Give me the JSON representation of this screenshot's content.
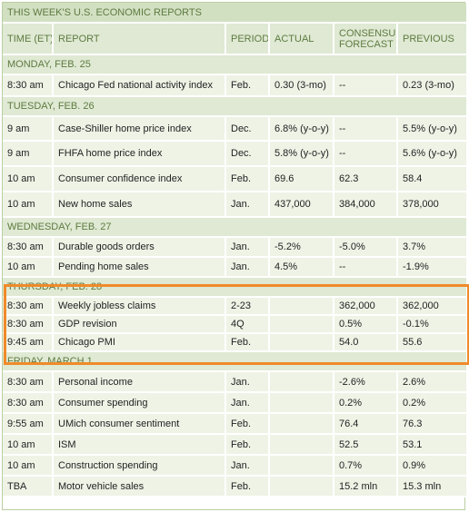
{
  "title": "THIS WEEK'S U.S. ECONOMIC REPORTS",
  "headers": {
    "time": "TIME (ET)",
    "report": "REPORT",
    "period": "PERIOD",
    "actual": "ACTUAL",
    "consensus_1": "CONSENSUS",
    "consensus_2": "FORECAST",
    "previous": "PREVIOUS"
  },
  "days": [
    {
      "label": "MONDAY, FEB. 25",
      "rows": [
        {
          "time": "8:30 am",
          "report": "Chicago Fed national activity index",
          "period": "Feb.",
          "actual": "0.30 (3-mo)",
          "consensus": "--",
          "previous": "0.23 (3-mo)"
        }
      ]
    },
    {
      "label": "TUESDAY, FEB. 26",
      "rows": [
        {
          "time": "9 am",
          "report": "Case-Shiller home price index",
          "period": "Dec.",
          "actual": "6.8% (y-o-y)",
          "consensus": "--",
          "previous": "5.5% (y-o-y)"
        },
        {
          "time": "9 am",
          "report": "FHFA home price index",
          "period": "Dec.",
          "actual": "5.8% (y-o-y)",
          "consensus": "--",
          "previous": "5.6% (y-o-y)"
        },
        {
          "time": "10 am",
          "report": "Consumer confidence index",
          "period": "Feb.",
          "actual": "69.6",
          "consensus": "62.3",
          "previous": "58.4"
        },
        {
          "time": "10 am",
          "report": "New home sales",
          "period": "Jan.",
          "actual": "437,000",
          "consensus": "384,000",
          "previous": "378,000"
        }
      ]
    },
    {
      "label": "WEDNESDAY, FEB. 27",
      "rows": [
        {
          "time": "8:30 am",
          "report": "Durable goods orders",
          "period": "Jan.",
          "actual": "-5.2%",
          "consensus": "-5.0%",
          "previous": "3.7%"
        },
        {
          "time": "10 am",
          "report": "Pending home sales",
          "period": "Jan.",
          "actual": "4.5%",
          "consensus": "--",
          "previous": "-1.9%"
        }
      ]
    },
    {
      "label": "THURSDAY, FEB. 28",
      "rows": [
        {
          "time": "8:30 am",
          "report": "Weekly jobless claims",
          "period": "2-23",
          "actual": "",
          "consensus": "362,000",
          "previous": "362,000"
        },
        {
          "time": "8:30 am",
          "report": "GDP revision",
          "period": "4Q",
          "actual": "",
          "consensus": "0.5%",
          "previous": "-0.1%"
        },
        {
          "time": "9:45 am",
          "report": "Chicago PMI",
          "period": "Feb.",
          "actual": "",
          "consensus": "54.0",
          "previous": "55.6"
        }
      ]
    },
    {
      "label": "FRIDAY, MARCH 1",
      "rows": [
        {
          "time": "8:30 am",
          "report": "Personal income",
          "period": "Jan.",
          "actual": "",
          "consensus": "-2.6%",
          "previous": "2.6%"
        },
        {
          "time": "8:30 am",
          "report": "Consumer spending",
          "period": "Jan.",
          "actual": "",
          "consensus": "0.2%",
          "previous": "0.2%"
        },
        {
          "time": "9:55 am",
          "report": "UMich consumer sentiment",
          "period": "Feb.",
          "actual": "",
          "consensus": "76.4",
          "previous": "76.3"
        },
        {
          "time": "10 am",
          "report": "ISM",
          "period": "Feb.",
          "actual": "",
          "consensus": "52.5",
          "previous": "53.1"
        },
        {
          "time": "10 am",
          "report": "Construction spending",
          "period": "Jan.",
          "actual": "",
          "consensus": "0.7%",
          "previous": "0.9%"
        },
        {
          "time": "TBA",
          "report": "Motor vehicle sales",
          "period": "Feb.",
          "actual": "",
          "consensus": "15.2 mln",
          "previous": "15.3 mln"
        }
      ]
    }
  ],
  "colors": {
    "header_text": "#5e7b41",
    "title_bg": "#d2e0c2",
    "row_bg": "#eef3e6",
    "highlight_border": "#f08a2a"
  }
}
